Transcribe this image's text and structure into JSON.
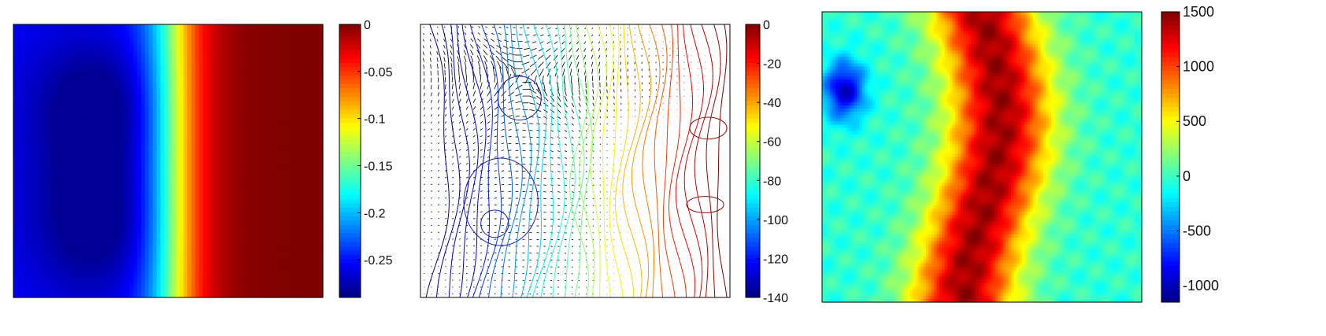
{
  "chart_data": [
    {
      "type": "heatmap",
      "colormap": "jet",
      "colorbar": {
        "range": [
          -0.29,
          0
        ],
        "ticks": [
          0,
          -0.05,
          -0.1,
          -0.15,
          -0.2,
          -0.25
        ],
        "tick_labels": [
          "0",
          "-0.05",
          "-0.1",
          "-0.15",
          "-0.2",
          "-0.25"
        ]
      },
      "field": {
        "description_of_values": "blue minimum region on left, rising smoothly to 0 on right",
        "min_value": -0.29,
        "max_value": 0
      }
    },
    {
      "type": "heatmap",
      "subtype": "contour-with-vectors",
      "colormap": "jet",
      "colorbar": {
        "range": [
          -140,
          0
        ],
        "ticks": [
          0,
          -20,
          -40,
          -60,
          -80,
          -100,
          -120,
          -140
        ],
        "tick_labels": [
          "0",
          "-20",
          "-40",
          "-60",
          "-80",
          "-100",
          "-120",
          "-140"
        ]
      },
      "field": {
        "min_value": -140,
        "max_value": 0
      },
      "grid": false,
      "quiver": true
    },
    {
      "type": "heatmap",
      "colormap": "jet",
      "colorbar": {
        "range": [
          -1150,
          1500
        ],
        "ticks": [
          1500,
          1000,
          500,
          0,
          -500,
          -1000
        ],
        "tick_labels": [
          "1500",
          "1000",
          "500",
          "0",
          "-500",
          "-1000"
        ]
      },
      "field": {
        "min_value": -1150,
        "max_value": 1500
      }
    }
  ]
}
